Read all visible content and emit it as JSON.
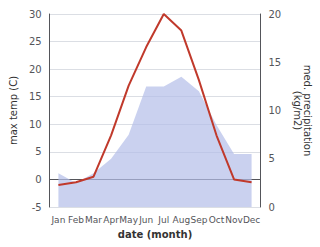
{
  "chart_data": {
    "type": "line",
    "categories": [
      "Jan",
      "Feb",
      "Mar",
      "Apr",
      "May",
      "Jun",
      "Jul",
      "Aug",
      "Sep",
      "Oct",
      "Nov",
      "Dec"
    ],
    "xlabel": "date (month)",
    "ylabel": "max temp (C)",
    "y2label": "med. precipitation\n(kg/m2)",
    "ylim": [
      -5,
      30
    ],
    "yticks": [
      -5,
      0,
      5,
      10,
      15,
      20,
      25,
      30
    ],
    "y2lim": [
      0,
      20
    ],
    "y2ticks": [
      0,
      5,
      10,
      15,
      20
    ],
    "grid": true,
    "series": [
      {
        "type": "area",
        "axis": "y2",
        "color": "#b3bde8",
        "values": [
          3.5,
          2.5,
          3.5,
          5.0,
          7.5,
          12.5,
          12.5,
          13.5,
          12.0,
          8.5,
          5.5,
          5.5
        ]
      },
      {
        "type": "line",
        "color": "#c0392b",
        "values": [
          -1,
          -0.5,
          0.5,
          8,
          17,
          24,
          30,
          27,
          18,
          8,
          0,
          -0.5
        ]
      }
    ]
  }
}
